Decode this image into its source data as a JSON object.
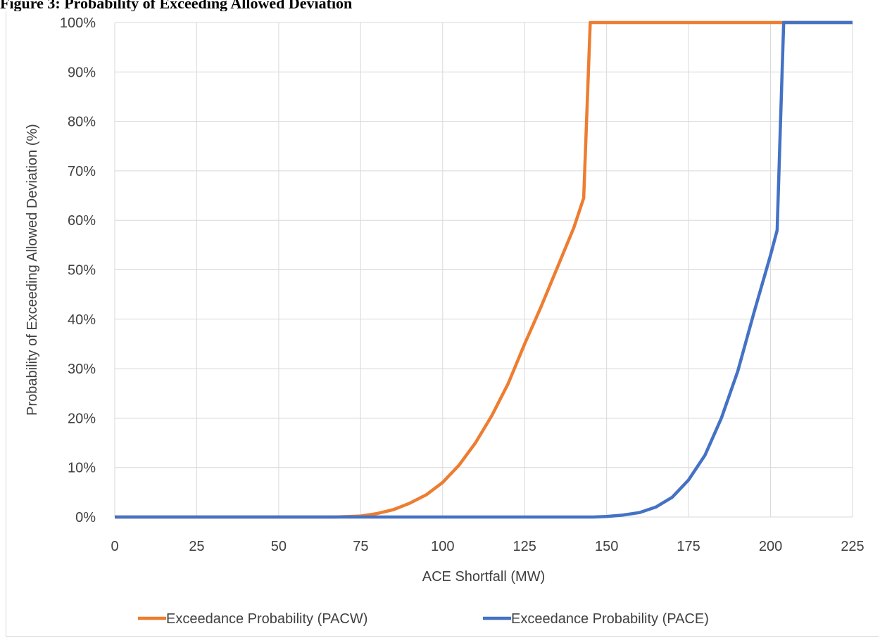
{
  "caption": "Figure 3: Probability of Exceeding Allowed Deviation",
  "chart_data": {
    "type": "line",
    "title": "",
    "xlabel": "ACE Shortfall (MW)",
    "ylabel": "Probability of Exceeding Allowed Deviation (%)",
    "xlim": [
      0,
      225
    ],
    "ylim": [
      0,
      100
    ],
    "xticks": [
      0,
      25,
      50,
      75,
      100,
      125,
      150,
      175,
      200,
      225
    ],
    "yticks": [
      0,
      10,
      20,
      30,
      40,
      50,
      60,
      70,
      80,
      90,
      100
    ],
    "ytick_labels": [
      "0%",
      "10%",
      "20%",
      "30%",
      "40%",
      "50%",
      "60%",
      "70%",
      "80%",
      "90%",
      "100%"
    ],
    "grid": true,
    "legend_position": "bottom",
    "series": [
      {
        "name": "Exceedance Probability (PACW)",
        "color": "#ED7D31",
        "x": [
          0,
          67,
          75,
          80,
          85,
          90,
          95,
          100,
          105,
          110,
          115,
          120,
          125,
          130,
          135,
          140,
          143,
          144,
          145,
          225
        ],
        "y": [
          0,
          0,
          0.2,
          0.7,
          1.5,
          2.8,
          4.5,
          7,
          10.5,
          15,
          20.5,
          27,
          35,
          42.5,
          50.5,
          58.5,
          64.5,
          82,
          100,
          100
        ]
      },
      {
        "name": "Exceedance Probability (PACE)",
        "color": "#4472C4",
        "x": [
          0,
          146,
          150,
          155,
          160,
          165,
          170,
          175,
          180,
          185,
          190,
          195,
          200,
          202,
          203,
          204,
          225
        ],
        "y": [
          0,
          0,
          0.1,
          0.4,
          0.9,
          2,
          4,
          7.5,
          12.5,
          20,
          29.5,
          41.5,
          53,
          58,
          79,
          100,
          100
        ]
      }
    ]
  }
}
